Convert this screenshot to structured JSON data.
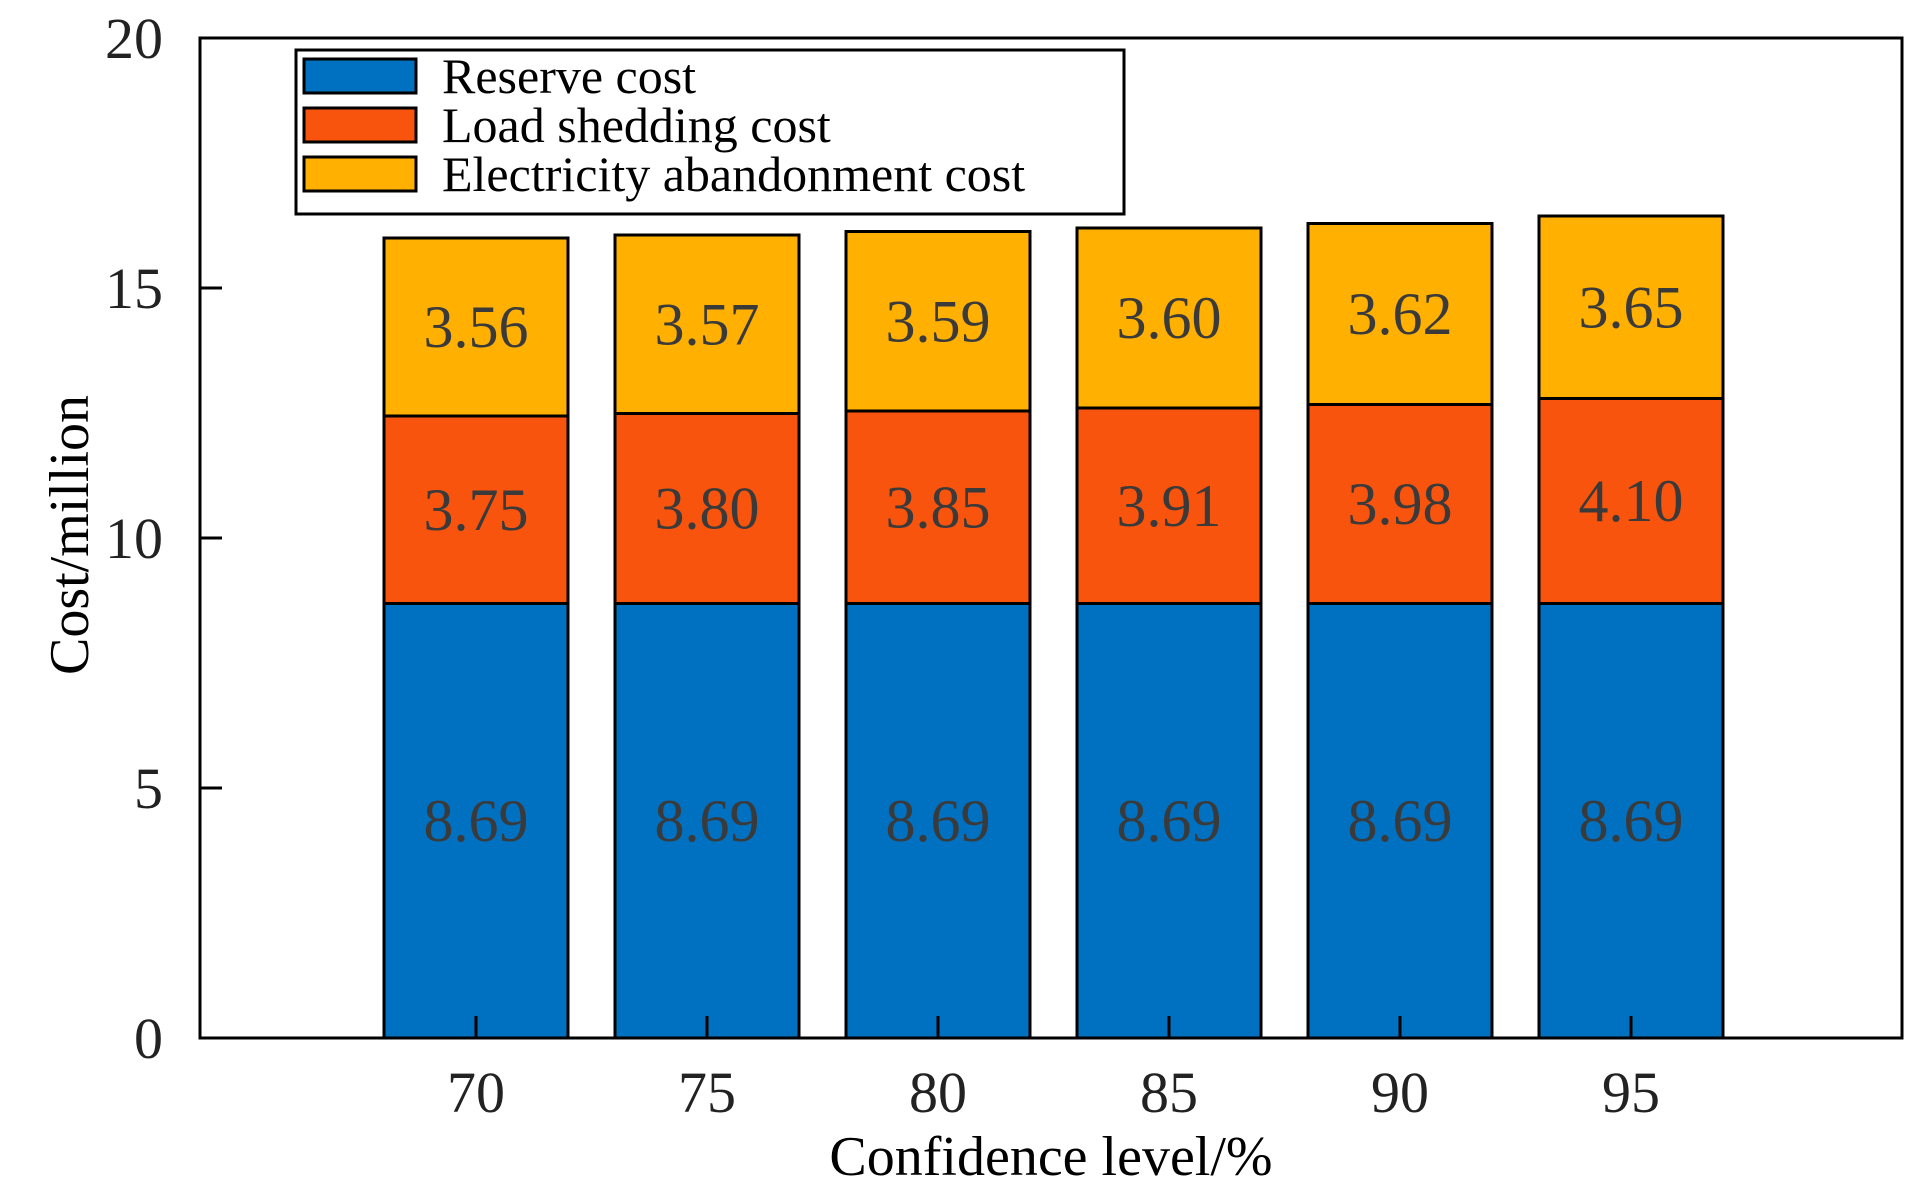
{
  "chart_data": {
    "type": "bar",
    "stacked": true,
    "title": "",
    "xlabel": "Confidence level/%",
    "ylabel": "Cost/million",
    "ylim": [
      0,
      20
    ],
    "yticks": [
      "0",
      "5",
      "10",
      "15",
      "20"
    ],
    "categories": [
      "70",
      "75",
      "80",
      "85",
      "90",
      "95"
    ],
    "series": [
      {
        "name": "Reserve cost",
        "color": "#0070C0",
        "values": [
          8.69,
          8.69,
          8.69,
          8.69,
          8.69,
          8.69
        ],
        "labels": [
          "8.69",
          "8.69",
          "8.69",
          "8.69",
          "8.69",
          "8.69"
        ]
      },
      {
        "name": "Load shedding cost",
        "color": "#F8540E",
        "values": [
          3.75,
          3.8,
          3.85,
          3.91,
          3.98,
          4.1
        ],
        "labels": [
          "3.75",
          "3.80",
          "3.85",
          "3.91",
          "3.98",
          "4.10"
        ]
      },
      {
        "name": "Electricity abandonment cost",
        "color": "#FFB000",
        "values": [
          3.56,
          3.57,
          3.59,
          3.6,
          3.62,
          3.65
        ],
        "labels": [
          "3.56",
          "3.57",
          "3.59",
          "3.60",
          "3.62",
          "3.65"
        ]
      }
    ],
    "legend": {
      "position": "top-left",
      "entries": [
        "Reserve cost",
        "Load shedding cost",
        "Electricity abandonment cost"
      ]
    },
    "grid": false
  }
}
